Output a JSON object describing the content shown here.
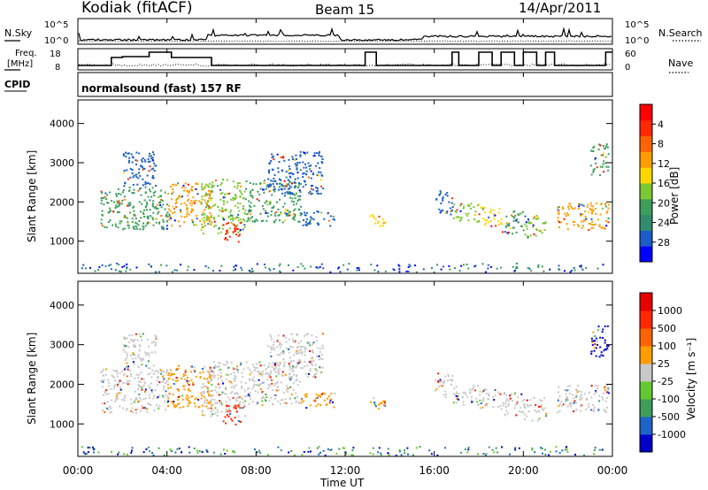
{
  "header": {
    "station": "Kodiak (fitACF)",
    "beam": "Beam 15",
    "date": "14/Apr/2011"
  },
  "ancillary": {
    "nsky_label": "N.Sky",
    "nsearch_label": "N.Search",
    "freq_label_1": "Freq.",
    "freq_label_2": "[MHz]",
    "nave_label": "Nave",
    "cpid_label": "CPID",
    "cpid_text": "normalsound (fast) 157 RF",
    "noise_ticks": [
      "10^5",
      "10^0"
    ],
    "freq_ticks": [
      "18",
      "8"
    ],
    "nave_ticks": [
      "60",
      "0"
    ]
  },
  "chart_data": [
    {
      "type": "heatmap",
      "xlabel": "Time UT",
      "ylabel": "Slant Range [km]",
      "x_ticks": [
        "00:00",
        "04:00",
        "08:00",
        "12:00",
        "16:00",
        "20:00",
        "00:00"
      ],
      "xlim": [
        0,
        24
      ],
      "ylim": [
        180,
        4600
      ],
      "y_ticks": [
        "1000",
        "2000",
        "3000",
        "4000"
      ],
      "colorbar": {
        "label": "Power [dB]",
        "ticks": [
          "4",
          "8",
          "12",
          "16",
          "20",
          "24",
          "28"
        ],
        "colors": [
          "#0000ff",
          "#1c5cc8",
          "#2f8c6e",
          "#3c9e5a",
          "#7cc832",
          "#ffd700",
          "#ff9c00",
          "#ff6400",
          "#ff2800",
          "#ff0000"
        ]
      },
      "patches": [
        {
          "t": [
            1.0,
            4.0
          ],
          "r": [
            1300,
            2400
          ],
          "color": "#3c9e5a"
        },
        {
          "t": [
            2.0,
            3.5
          ],
          "r": [
            2400,
            3300
          ],
          "color": "#1c5cc8"
        },
        {
          "t": [
            4.0,
            6.0
          ],
          "r": [
            1400,
            2500
          ],
          "color": "#ff9c00"
        },
        {
          "t": [
            5.5,
            7.5
          ],
          "r": [
            1200,
            2600
          ],
          "color": "#7cc832"
        },
        {
          "t": [
            6.5,
            7.3
          ],
          "r": [
            1000,
            1500
          ],
          "color": "#ff2800"
        },
        {
          "t": [
            7.5,
            10.0
          ],
          "r": [
            1500,
            2600
          ],
          "color": "#3c9e5a"
        },
        {
          "t": [
            8.5,
            11.0
          ],
          "r": [
            2200,
            3300
          ],
          "color": "#1c5cc8"
        },
        {
          "t": [
            10.0,
            11.5
          ],
          "r": [
            1400,
            1800
          ],
          "color": "#1c5cc8"
        },
        {
          "t": [
            13.0,
            13.8
          ],
          "r": [
            1400,
            1700
          ],
          "color": "#ffd700"
        },
        {
          "t": [
            16.0,
            16.8
          ],
          "r": [
            1700,
            2300
          ],
          "color": "#1c5cc8"
        },
        {
          "t": [
            16.8,
            18.0
          ],
          "r": [
            1500,
            2000
          ],
          "color": "#7cc832"
        },
        {
          "t": [
            18.0,
            19.0
          ],
          "r": [
            1400,
            1900
          ],
          "color": "#ffd700"
        },
        {
          "t": [
            19.0,
            20.0
          ],
          "r": [
            1200,
            1800
          ],
          "color": "#3c9e5a"
        },
        {
          "t": [
            20.0,
            21.0
          ],
          "r": [
            1100,
            1700
          ],
          "color": "#7cc832"
        },
        {
          "t": [
            21.5,
            23.8
          ],
          "r": [
            1300,
            2000
          ],
          "color": "#ff9c00"
        },
        {
          "t": [
            23.0,
            23.8
          ],
          "r": [
            2700,
            3500
          ],
          "color": "#3c9e5a"
        }
      ]
    },
    {
      "type": "heatmap",
      "xlabel": "Time UT",
      "ylabel": "Slant Range [km]",
      "x_ticks": [
        "00:00",
        "04:00",
        "08:00",
        "12:00",
        "16:00",
        "20:00",
        "00:00"
      ],
      "xlim": [
        0,
        24
      ],
      "ylim": [
        180,
        4600
      ],
      "y_ticks": [
        "1000",
        "2000",
        "3000",
        "4000"
      ],
      "colorbar": {
        "label": "Velocity [m s⁻¹]",
        "ticks": [
          "1000",
          "500",
          "100",
          "25",
          "-25",
          "-100",
          "-500",
          "-1000"
        ],
        "colors": [
          "#0000c8",
          "#1e64c8",
          "#3c9e5a",
          "#64c832",
          "#c8c8c8",
          "#ff9c00",
          "#ff6400",
          "#ff2800",
          "#e60000"
        ]
      },
      "patches": [
        {
          "t": [
            1.0,
            4.0
          ],
          "r": [
            1300,
            2400
          ],
          "color": "#c8c8c8"
        },
        {
          "t": [
            2.0,
            3.5
          ],
          "r": [
            2400,
            3300
          ],
          "color": "#c8c8c8"
        },
        {
          "t": [
            4.0,
            6.0
          ],
          "r": [
            1400,
            2500
          ],
          "color": "#ff9c00"
        },
        {
          "t": [
            5.5,
            7.5
          ],
          "r": [
            1200,
            2600
          ],
          "color": "#c8c8c8"
        },
        {
          "t": [
            6.5,
            7.3
          ],
          "r": [
            1000,
            1500
          ],
          "color": "#ff2800"
        },
        {
          "t": [
            7.5,
            10.0
          ],
          "r": [
            1500,
            2600
          ],
          "color": "#c8c8c8"
        },
        {
          "t": [
            8.5,
            11.0
          ],
          "r": [
            2200,
            3300
          ],
          "color": "#c8c8c8"
        },
        {
          "t": [
            10.0,
            11.5
          ],
          "r": [
            1400,
            1800
          ],
          "color": "#ff9c00"
        },
        {
          "t": [
            13.0,
            13.8
          ],
          "r": [
            1400,
            1700
          ],
          "color": "#ff9c00"
        },
        {
          "t": [
            16.0,
            16.8
          ],
          "r": [
            1700,
            2300
          ],
          "color": "#c8c8c8"
        },
        {
          "t": [
            16.8,
            18.0
          ],
          "r": [
            1500,
            2000
          ],
          "color": "#c8c8c8"
        },
        {
          "t": [
            18.0,
            19.0
          ],
          "r": [
            1400,
            1900
          ],
          "color": "#c8c8c8"
        },
        {
          "t": [
            19.0,
            20.0
          ],
          "r": [
            1200,
            1800
          ],
          "color": "#c8c8c8"
        },
        {
          "t": [
            20.0,
            21.0
          ],
          "r": [
            1100,
            1700
          ],
          "color": "#c8c8c8"
        },
        {
          "t": [
            21.5,
            23.8
          ],
          "r": [
            1300,
            2000
          ],
          "color": "#c8c8c8"
        },
        {
          "t": [
            23.0,
            23.8
          ],
          "r": [
            2700,
            3500
          ],
          "color": "#0000c8"
        }
      ]
    }
  ]
}
